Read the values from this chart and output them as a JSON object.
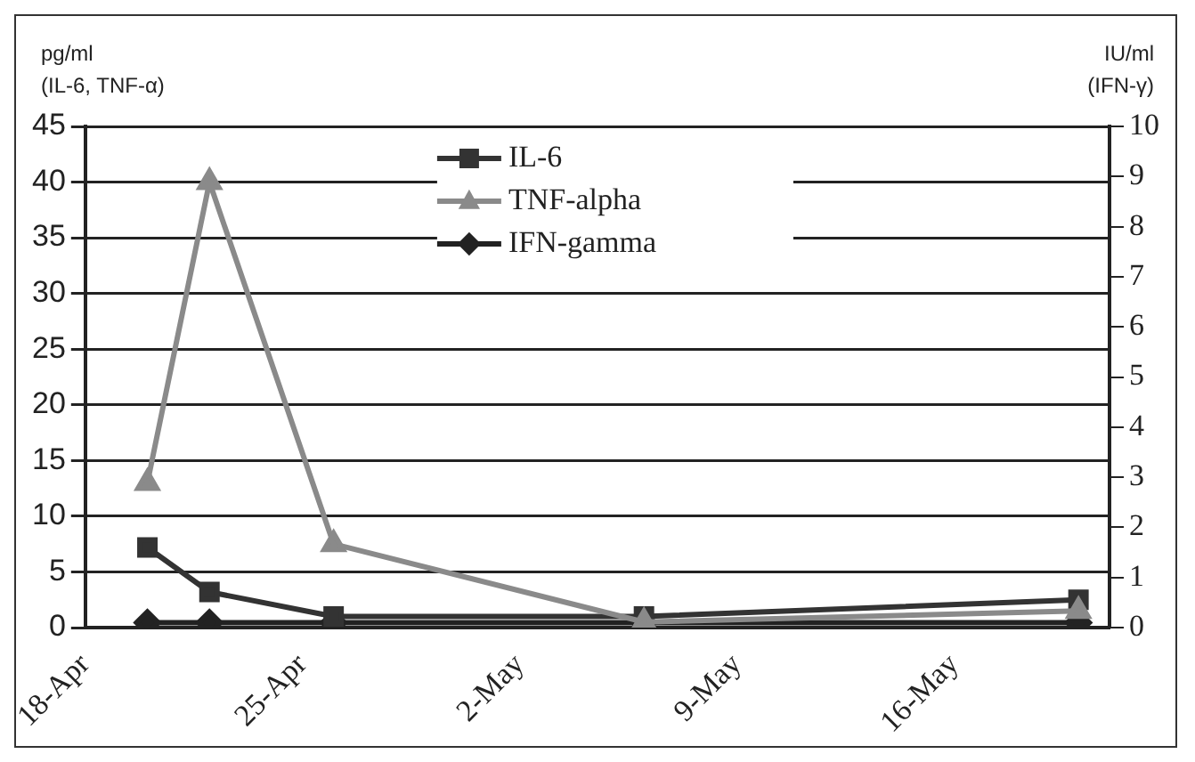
{
  "chart_data": {
    "type": "line",
    "ylabel": "pg/ml (IL-6, TNF-α)",
    "y2label": "IU/ml (IFN-γ)",
    "x": [
      "--04-20",
      "--04-22",
      "--04-26",
      "--05-06",
      "--05-20"
    ],
    "xlim": [
      "--04-18",
      "--05-21"
    ],
    "xticks": [
      {
        "value": "--04-18",
        "label": "18-Apr"
      },
      {
        "value": "--04-25",
        "label": "25-Apr"
      },
      {
        "value": "--05-02",
        "label": "2-May"
      },
      {
        "value": "--05-09",
        "label": "9-May"
      },
      {
        "value": "--05-16",
        "label": "16-May"
      }
    ],
    "ylim": [
      0,
      45
    ],
    "yticks": [
      0,
      5,
      10,
      15,
      20,
      25,
      30,
      35,
      40,
      45
    ],
    "y2lim": [
      0,
      10
    ],
    "y2ticks": [
      0,
      1,
      2,
      3,
      4,
      5,
      6,
      7,
      8,
      9,
      10
    ],
    "grid": "y",
    "legend": "top",
    "series": [
      {
        "name": "IL-6",
        "color": "#333333",
        "marker": "square",
        "values": [
          7.2,
          3.2,
          1,
          1,
          2.5
        ]
      },
      {
        "name": "TNF-alpha",
        "color": "#8a8a8a",
        "marker": "triangle",
        "values": [
          13,
          40,
          7.5,
          0.5,
          1.5
        ]
      },
      {
        "name": "IFN-gamma",
        "color": "#222222",
        "marker": "diamond",
        "axis": "y2",
        "values": [
          0.1,
          0.1,
          0.1,
          0.1,
          0.1
        ]
      }
    ]
  }
}
